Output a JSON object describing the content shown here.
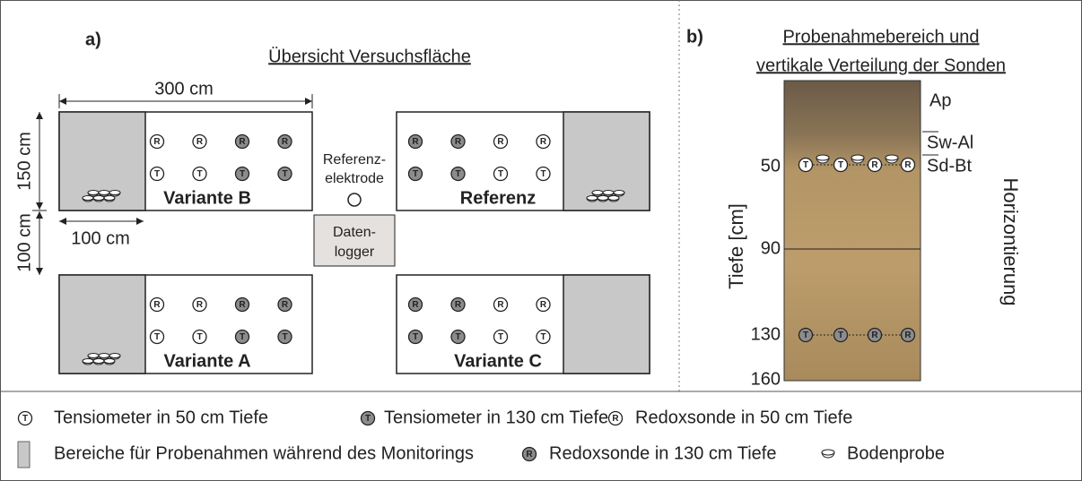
{
  "panel_a": {
    "label": "a)",
    "title": "Übersicht Versuchsfläche",
    "dimensions": {
      "width": "300 cm",
      "plot_height": "150 cm",
      "gap": "100 cm",
      "sample_area": "100 cm"
    },
    "reference_electrode": [
      "Referenz-",
      "elektrode"
    ],
    "datalogger": [
      "Daten-",
      "logger"
    ],
    "plots": [
      "Variante B",
      "Referenz",
      "Variante A",
      "Variante C"
    ]
  },
  "sensor_letters": {
    "tensiometer": "T",
    "redox": "R"
  },
  "panel_b": {
    "label": "b)",
    "title": [
      "Probenahmebereich und",
      "vertikale Verteilung der Sonden"
    ],
    "depth_axis_label": "Tiefe [cm]",
    "depth_labels": [
      "50",
      "90",
      "130",
      "160"
    ],
    "horizon_axis_label": "Horizontierung",
    "horizons": [
      "Ap",
      "Sw-Al",
      "Sd-Bt"
    ]
  },
  "legend": {
    "tensiometer_50": "Tensiometer in 50 cm Tiefe",
    "tensiometer_130": "Tensiometer in 130 cm Tiefe",
    "redox_50": "Redoxsonde in 50 cm Tiefe",
    "sampling_area": "Bereiche für Probenahmen während des Monitorings",
    "redox_130": "Redoxsonde in 130 cm Tiefe",
    "soil_sample": "Bodenprobe"
  }
}
